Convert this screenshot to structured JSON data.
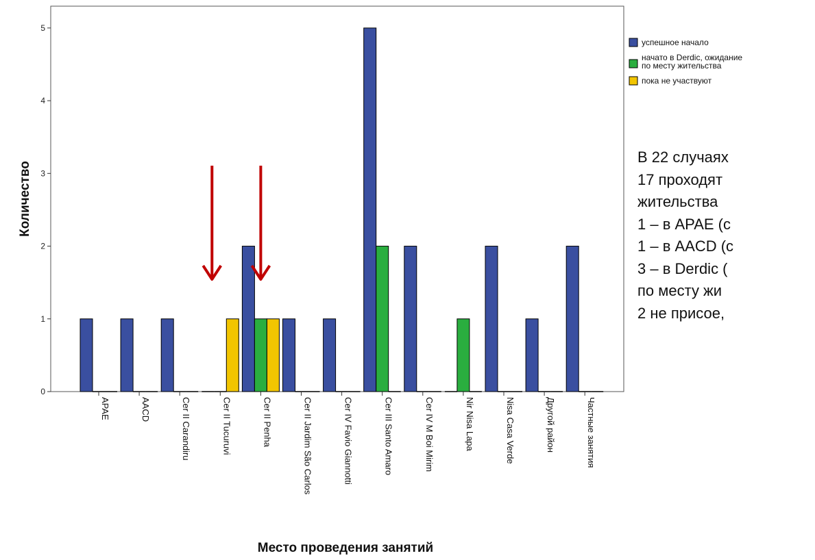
{
  "chart_data": {
    "type": "bar",
    "xlabel": "Место проведения занятий",
    "ylabel": "Количество",
    "ylim": [
      0,
      5.3
    ],
    "yticks": [
      "0",
      "1",
      "2",
      "3",
      "4",
      "5"
    ],
    "grid": false,
    "legend_position": "right",
    "categories": [
      "APAE",
      "AACD",
      "Cer II Carandiru",
      "Cer II Tucuruvi",
      "Cer II Penha",
      "Cer II Jardim São Carlos",
      "Cer IV Favio Giannotti",
      "Cer III Santo Amaro",
      "Cer IV M Boi Mirim",
      "Nir Nisa Lapa",
      "Nisa Casa Verde",
      "Другой район",
      "Частные занятия"
    ],
    "series": [
      {
        "name": "успешное начало",
        "color": "#3a4fa0",
        "values": [
          1,
          1,
          1,
          0,
          2,
          1,
          1,
          5,
          2,
          0,
          2,
          1,
          2
        ]
      },
      {
        "name": "начато в Derdic, ожидание по месту жительства",
        "color": "#2aae3f",
        "values": [
          0,
          0,
          0,
          0,
          1,
          0,
          0,
          2,
          0,
          1,
          0,
          0,
          0
        ]
      },
      {
        "name": "пока не участвуют",
        "color": "#f2c500",
        "values": [
          0,
          0,
          0,
          1,
          1,
          0,
          0,
          0,
          0,
          0,
          0,
          0,
          0
        ]
      }
    ],
    "annotations": {
      "arrow_color": "#c00000",
      "arrows": [
        "Cer II Tucuruvi",
        "Cer II Penha"
      ]
    }
  },
  "legend_lines": [
    [
      "успешное начало"
    ],
    [
      "начато в Derdic, ожидание",
      "по месту жительства"
    ],
    [
      "пока не участвуют"
    ]
  ],
  "side_text": [
    "В 22 случаях",
    "17 проходят",
    "жительства",
    "1 – в APAE (с",
    "1 – в AACD (с",
    "3 – в Derdic (",
    "по месту жи",
    "2 не присое,"
  ]
}
